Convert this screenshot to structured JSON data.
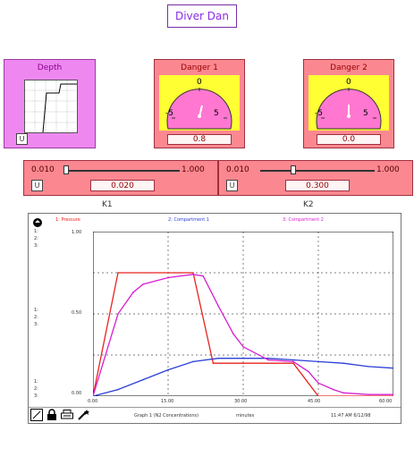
{
  "title": "Diver Dan",
  "depth": {
    "label": "Depth",
    "button": "U"
  },
  "gauges": [
    {
      "label": "Danger 1",
      "value": "0.8",
      "ticks": [
        "-5",
        "0",
        "5"
      ]
    },
    {
      "label": "Danger 2",
      "value": "0.0",
      "ticks": [
        "-5",
        "0",
        "5"
      ]
    }
  ],
  "sliders": [
    {
      "min": "0.010",
      "max": "1.000",
      "value": "0.020",
      "label": "K1",
      "button": "U",
      "position": 0.01
    },
    {
      "min": "0.010",
      "max": "1.000",
      "value": "0.300",
      "label": "K2",
      "button": "U",
      "position": 0.29
    }
  ],
  "graph": {
    "legend": [
      "1: Pressure",
      "2: Compartment 1",
      "3: Compartment 2"
    ],
    "series_colors": [
      "#e8231e",
      "#2b3fd6",
      "#d61fd1"
    ],
    "yticks": [
      "1.00",
      "0.50",
      "0.00"
    ],
    "ytick_top": "1.00",
    "yticks_full": [
      "1.00",
      "0.50",
      "0.00"
    ],
    "xticks": [
      "0.00",
      "15.00",
      "30.00",
      "45.00",
      "60.00"
    ],
    "left_labels": [
      "1:",
      "2:",
      "3:"
    ],
    "footer_title": "Graph 1 (N2 Concentrations)",
    "footer_units": "minutes",
    "footer_time": "11:47 AM  6/12/98"
  },
  "chart_data": {
    "type": "line",
    "title": "Graph 1 (N2 Concentrations)",
    "xlabel": "minutes",
    "ylabel": "",
    "xlim": [
      0,
      60
    ],
    "ylim": [
      0,
      1
    ],
    "series": [
      {
        "name": "Pressure",
        "color": "#e8231e",
        "x": [
          0,
          5,
          20,
          24,
          30,
          40,
          45,
          60
        ],
        "y": [
          0,
          0.75,
          0.75,
          0.2,
          0.2,
          0.2,
          0,
          0
        ]
      },
      {
        "name": "Compartment 1",
        "color": "#2b3fd6",
        "x": [
          0,
          5,
          10,
          15,
          20,
          25,
          30,
          35,
          40,
          45,
          50,
          55,
          60
        ],
        "y": [
          0,
          0.04,
          0.1,
          0.16,
          0.21,
          0.23,
          0.23,
          0.23,
          0.22,
          0.21,
          0.2,
          0.18,
          0.17
        ]
      },
      {
        "name": "Compartment 2",
        "color": "#d61fd1",
        "x": [
          0,
          2,
          5,
          8,
          10,
          15,
          20,
          22,
          25,
          28,
          30,
          35,
          40,
          43,
          45,
          48,
          50,
          55,
          60
        ],
        "y": [
          0,
          0.2,
          0.5,
          0.63,
          0.68,
          0.72,
          0.74,
          0.73,
          0.55,
          0.38,
          0.3,
          0.22,
          0.21,
          0.15,
          0.08,
          0.04,
          0.02,
          0.01,
          0.01
        ]
      }
    ]
  }
}
